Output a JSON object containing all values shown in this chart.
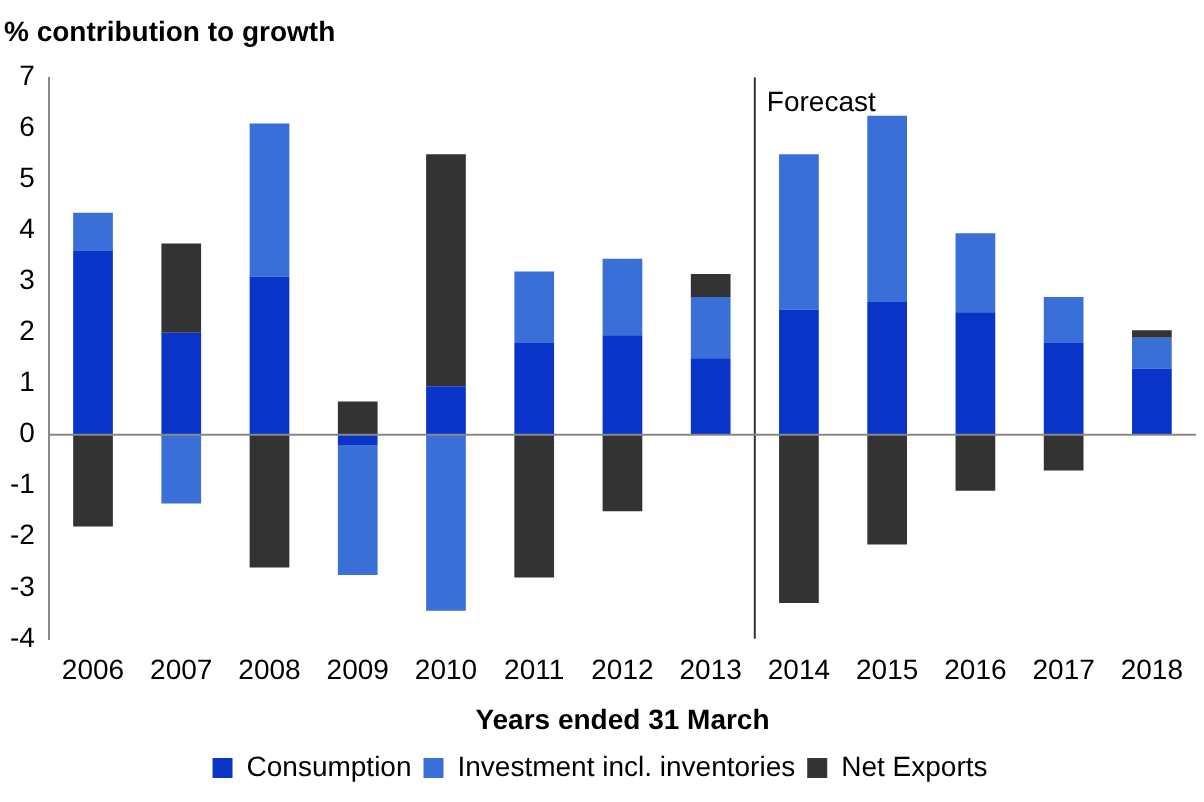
{
  "chart_data": {
    "type": "bar",
    "stacked": true,
    "ylabel": "% contribution to growth",
    "xlabel": "Years ended 31 March",
    "categories": [
      "2006",
      "2007",
      "2008",
      "2009",
      "2010",
      "2011",
      "2012",
      "2013",
      "2014",
      "2015",
      "2016",
      "2017",
      "2018"
    ],
    "series": [
      {
        "name": "Consumption",
        "color": "#0a33c8",
        "values": [
          3.6,
          2.0,
          3.1,
          -0.2,
          0.95,
          1.8,
          1.95,
          1.5,
          2.45,
          2.6,
          2.4,
          1.8,
          1.3
        ]
      },
      {
        "name": "Investment incl. inventories",
        "color": "#3a6fd8",
        "values": [
          0.75,
          -1.35,
          3.0,
          -2.55,
          -3.45,
          1.4,
          1.5,
          1.2,
          3.05,
          3.65,
          1.55,
          0.9,
          0.6
        ]
      },
      {
        "name": "Net Exports",
        "color": "#333333",
        "values": [
          -1.8,
          1.75,
          -2.6,
          0.65,
          4.55,
          -2.8,
          -1.5,
          0.45,
          -3.3,
          -2.15,
          -1.1,
          -0.7,
          0.15
        ]
      }
    ],
    "ylim": [
      -4,
      7
    ],
    "yticks": [
      -4,
      -3,
      -2,
      -1,
      0,
      1,
      2,
      3,
      4,
      5,
      6,
      7
    ],
    "grid": false,
    "legend": "bottom",
    "ref_lines": [
      {
        "axis": "x",
        "value": "2014",
        "label": "Forecast",
        "color": "#333333"
      }
    ]
  }
}
